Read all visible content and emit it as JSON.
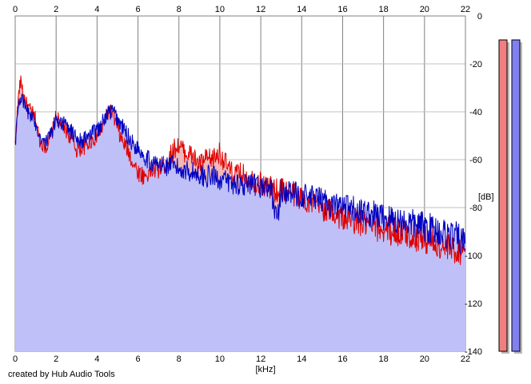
{
  "credit": "created by Hub Audio Tools",
  "colors": {
    "background": "#ffffff",
    "grid": "#c0c0c0",
    "grid_major": "#808080",
    "fill": "#c0c0f8",
    "left_channel": "#e00000",
    "right_channel": "#0000c0",
    "left_difference_fill": "#f0b8b8",
    "meter_left": "#f08080",
    "meter_right": "#8080f0",
    "meter_shadow": "#b8b8b8"
  },
  "chart_data": {
    "type": "line",
    "title": "",
    "xlabel": "[kHz]",
    "ylabel": "[dB]",
    "xlim": [
      0,
      22
    ],
    "ylim": [
      -140,
      0
    ],
    "x_ticks": [
      0,
      2,
      4,
      6,
      8,
      10,
      12,
      14,
      16,
      18,
      20,
      22
    ],
    "y_ticks": [
      0,
      -20,
      -40,
      -60,
      -80,
      -100,
      -120,
      -140
    ],
    "x_tick_labels": [
      "0",
      "2",
      "4",
      "6",
      "8",
      "10",
      "12",
      "14",
      "16",
      "18",
      "20",
      "22"
    ],
    "y_tick_labels": [
      "0",
      "-20",
      "-40",
      "-60",
      "-80",
      "-100",
      "-120",
      "-140"
    ],
    "x_tick_positions": [
      "top",
      "bottom"
    ],
    "y_tick_position": "right",
    "grid": true,
    "legend": "none",
    "series": [
      {
        "color": "#e00000",
        "x": [
          0,
          0.1,
          0.2,
          0.3,
          0.4,
          0.6,
          0.8,
          1.0,
          1.2,
          1.5,
          1.8,
          2.0,
          2.2,
          2.5,
          2.8,
          3.0,
          3.3,
          3.6,
          4.0,
          4.3,
          4.6,
          4.8,
          5.0,
          5.2,
          5.5,
          5.8,
          6.0,
          6.3,
          6.6,
          7.0,
          7.3,
          7.6,
          7.8,
          8.0,
          8.3,
          8.6,
          9.0,
          9.3,
          9.6,
          10.0,
          10.3,
          10.6,
          11.0,
          11.5,
          12.0,
          12.5,
          12.8,
          13.0,
          13.5,
          14.0,
          14.5,
          15.0,
          15.5,
          16.0,
          16.5,
          17.0,
          17.5,
          18.0,
          18.5,
          19.0,
          19.5,
          20.0,
          20.5,
          21.0,
          21.5,
          22.0
        ],
        "y": [
          -54,
          -40,
          -30,
          -27,
          -33,
          -38,
          -40,
          -43,
          -52,
          -55,
          -49,
          -42,
          -45,
          -48,
          -52,
          -56,
          -55,
          -53,
          -50,
          -46,
          -39,
          -42,
          -47,
          -52,
          -56,
          -62,
          -65,
          -67,
          -65,
          -64,
          -62,
          -58,
          -55,
          -54,
          -57,
          -58,
          -62,
          -60,
          -60,
          -57,
          -62,
          -66,
          -66,
          -68,
          -70,
          -72,
          -73,
          -72,
          -74,
          -76,
          -78,
          -80,
          -82,
          -84,
          -85,
          -87,
          -88,
          -89,
          -90,
          -91,
          -92,
          -93,
          -95,
          -97,
          -98,
          -97
        ]
      },
      {
        "color": "#0000c0",
        "x": [
          0,
          0.1,
          0.2,
          0.3,
          0.4,
          0.6,
          0.8,
          1.0,
          1.2,
          1.5,
          1.8,
          2.0,
          2.2,
          2.5,
          2.8,
          3.0,
          3.3,
          3.6,
          4.0,
          4.3,
          4.6,
          4.8,
          5.0,
          5.2,
          5.5,
          5.8,
          6.0,
          6.3,
          6.6,
          7.0,
          7.3,
          7.6,
          7.8,
          8.0,
          8.3,
          8.6,
          9.0,
          9.3,
          9.6,
          10.0,
          10.3,
          10.6,
          11.0,
          11.5,
          12.0,
          12.5,
          12.8,
          13.0,
          13.5,
          14.0,
          14.5,
          15.0,
          15.5,
          16.0,
          16.5,
          17.0,
          17.5,
          18.0,
          18.5,
          19.0,
          19.5,
          20.0,
          20.5,
          21.0,
          21.5,
          22.0
        ],
        "y": [
          -54,
          -42,
          -35,
          -34,
          -37,
          -40,
          -42,
          -45,
          -50,
          -53,
          -48,
          -43,
          -44,
          -46,
          -49,
          -51,
          -52,
          -50,
          -48,
          -44,
          -40,
          -40,
          -43,
          -46,
          -50,
          -54,
          -55,
          -58,
          -61,
          -62,
          -63,
          -62,
          -63,
          -64,
          -64,
          -65,
          -66,
          -67,
          -67,
          -68,
          -69,
          -70,
          -70,
          -71,
          -71,
          -72,
          -86,
          -73,
          -74,
          -75,
          -76,
          -77,
          -79,
          -80,
          -81,
          -82,
          -83,
          -84,
          -85,
          -86,
          -87,
          -88,
          -89,
          -91,
          -92,
          -95
        ]
      }
    ],
    "level_meters": [
      {
        "channel": "left",
        "level_db": -1
      },
      {
        "channel": "right",
        "level_db": -1
      }
    ]
  }
}
